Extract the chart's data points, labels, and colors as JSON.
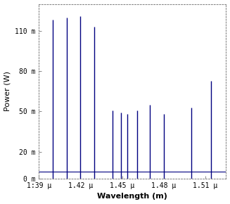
{
  "spike_wavelengths": [
    1.4e-06,
    1.41e-06,
    1.42e-06,
    1.43e-06,
    1.443e-06,
    1.449e-06,
    1.454e-06,
    1.461e-06,
    1.47e-06,
    1.48e-06,
    1.5e-06,
    1.514e-06
  ],
  "spike_powers": [
    0.118,
    0.12,
    0.121,
    0.113,
    0.051,
    0.049,
    0.048,
    0.051,
    0.055,
    0.048,
    0.053,
    0.073
  ],
  "xlabel": "Wavelength (m)",
  "ylabel": "Power (W)",
  "xlim": [
    1.39e-06,
    1.525e-06
  ],
  "ylim": [
    0,
    0.13
  ],
  "line_color": "#000080",
  "background_color": "#ffffff",
  "yticks": [
    0.0,
    0.02,
    0.05,
    0.08,
    0.11
  ],
  "ytick_labels": [
    "0 m",
    "20 m",
    "50 m",
    "80 m",
    "110 m"
  ],
  "xticks": [
    1.39e-06,
    1.42e-06,
    1.45e-06,
    1.48e-06,
    1.51e-06
  ],
  "xtick_labels": [
    "1:39 μ",
    "1.42 μ",
    "1.45 μ",
    "1.48 μ",
    "1.51 μ"
  ],
  "baseline_y": 0.005,
  "xlabel_fontsize": 8,
  "ylabel_fontsize": 8,
  "tick_fontsize": 7
}
